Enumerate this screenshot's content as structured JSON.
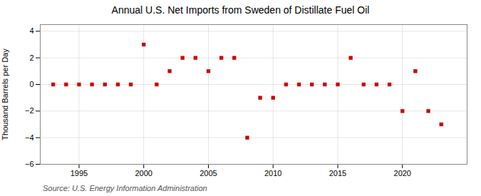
{
  "chart_data": {
    "type": "scatter",
    "title": "Annual U.S. Net Imports from Sweden of Distillate Fuel Oil",
    "ylabel": "Thousand Barrels per Day",
    "source": "Source: U.S. Energy Information Administration",
    "x": [
      1993,
      1994,
      1995,
      1996,
      1997,
      1998,
      1999,
      2000,
      2001,
      2002,
      2003,
      2004,
      2005,
      2006,
      2007,
      2008,
      2009,
      2010,
      2011,
      2012,
      2013,
      2014,
      2015,
      2016,
      2017,
      2018,
      2019,
      2020,
      2021,
      2022,
      2023
    ],
    "values": [
      0,
      0,
      0,
      0,
      0,
      0,
      0,
      3,
      0,
      1,
      2,
      2,
      1,
      2,
      2,
      -4,
      -1,
      -1,
      0,
      0,
      0,
      0,
      0,
      2,
      0,
      0,
      0,
      -2,
      1,
      -2,
      -3
    ],
    "color": "#cc0000",
    "marker": "square",
    "grid": true,
    "xlim": [
      1992,
      2025
    ],
    "xticks": [
      1995,
      2000,
      2005,
      2010,
      2015,
      2020
    ],
    "ylim": [
      -6,
      4.5
    ],
    "yticks": [
      -6,
      -4,
      -2,
      0,
      2,
      4
    ]
  }
}
